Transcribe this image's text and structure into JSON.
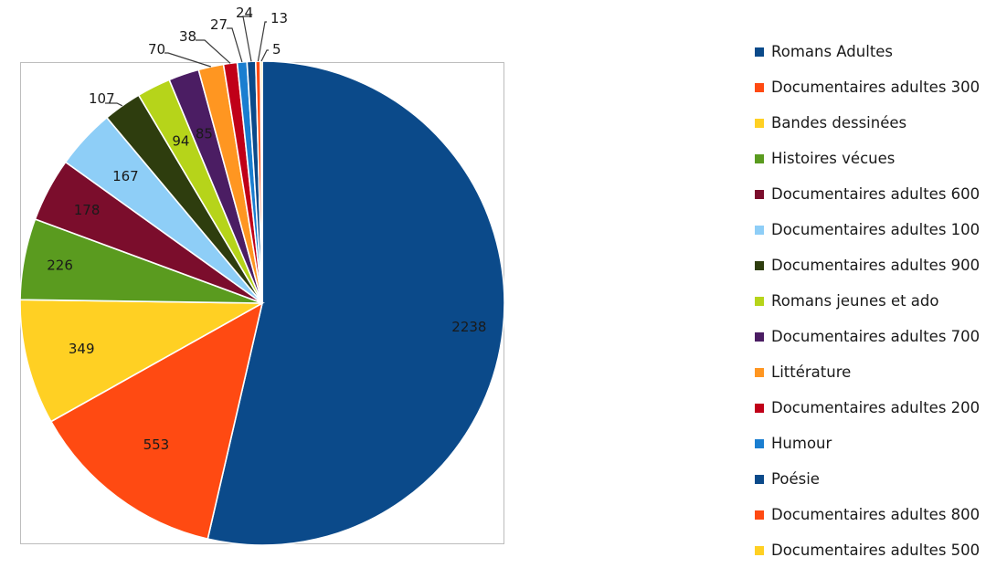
{
  "chart_data": {
    "type": "pie",
    "start_angle_deg": 0,
    "direction": "clockwise",
    "legend_position": "right",
    "slices": [
      {
        "label": "Romans Adultes",
        "value": 2238,
        "color": "#0b4a8a"
      },
      {
        "label": "Documentaires adultes 300",
        "value": 553,
        "color": "#ff4a12"
      },
      {
        "label": "Bandes dessinées",
        "value": 349,
        "color": "#ffd023"
      },
      {
        "label": "Histoires vécues",
        "value": 226,
        "color": "#5a9b1f"
      },
      {
        "label": "Documentaires adultes 600",
        "value": 178,
        "color": "#7b0d2c"
      },
      {
        "label": "Documentaires adultes 100",
        "value": 167,
        "color": "#8ecef7"
      },
      {
        "label": "Documentaires adultes 900",
        "value": 107,
        "color": "#2e3d0e"
      },
      {
        "label": "Romans jeunes et ado",
        "value": 94,
        "color": "#b6d41a"
      },
      {
        "label": "Documentaires adultes 700",
        "value": 85,
        "color": "#4b1d63"
      },
      {
        "label": "Littérature",
        "value": 70,
        "color": "#ff9621"
      },
      {
        "label": "Documentaires adultes 200",
        "value": 38,
        "color": "#c00018"
      },
      {
        "label": "Humour",
        "value": 27,
        "color": "#1a7ed0"
      },
      {
        "label": "Poésie",
        "value": 24,
        "color": "#0b4a8a"
      },
      {
        "label": "Documentaires adultes 800",
        "value": 13,
        "color": "#ff4a12"
      },
      {
        "label": "Documentaires adultes 500",
        "value": 5,
        "color": "#ffd023"
      }
    ]
  }
}
